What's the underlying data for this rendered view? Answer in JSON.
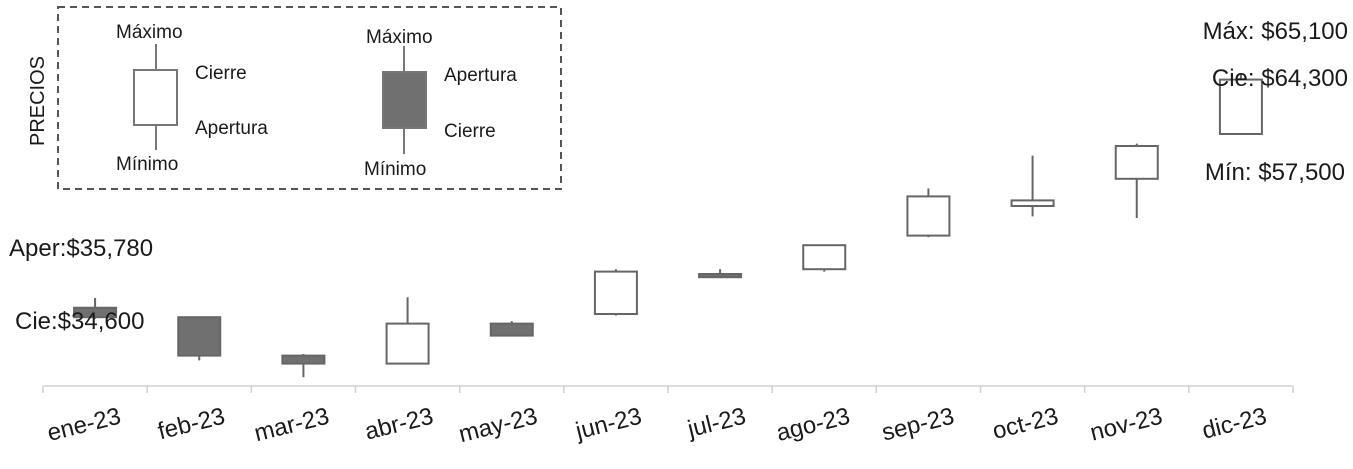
{
  "chart_data": {
    "type": "candlestick",
    "title": "",
    "xlabel": "",
    "ylabel": "",
    "y_axis_visible": false,
    "grid": false,
    "ylim": [
      26000,
      72000
    ],
    "colors": {
      "up_fill": "#ffffff",
      "down_fill": "#707070",
      "stroke": "#666666",
      "axis": "#d0d0d0"
    },
    "categories": [
      "ene-23",
      "feb-23",
      "mar-23",
      "abr-23",
      "may-23",
      "jun-23",
      "jul-23",
      "ago-23",
      "sep-23",
      "oct-23",
      "nov-23",
      "dic-23"
    ],
    "series": [
      {
        "open": [
          35780,
          34600,
          29800,
          28800,
          33800,
          35000,
          40000,
          40600,
          44800,
          48500,
          51900,
          57500
        ],
        "high": [
          37000,
          34700,
          30000,
          37100,
          34100,
          40600,
          40600,
          43600,
          50700,
          54800,
          56300,
          65100
        ],
        "low": [
          34400,
          29200,
          27100,
          28800,
          32300,
          34800,
          39600,
          40300,
          44600,
          47200,
          47000,
          57500
        ],
        "close": [
          34600,
          29800,
          28800,
          33800,
          32300,
          40300,
          39600,
          43600,
          49700,
          49200,
          56000,
          64300
        ]
      }
    ],
    "annotations": {
      "first_open": {
        "category": "ene-23",
        "text": "Aper:$35,780"
      },
      "first_close": {
        "category": "ene-23",
        "text": "Cie:$34,600"
      },
      "last_high": {
        "category": "dic-23",
        "text": "Máx: $65,100"
      },
      "last_close": {
        "category": "dic-23",
        "text": "Cie: $64,300"
      },
      "last_low": {
        "category": "dic-23",
        "text": "Mín: $57,500"
      }
    },
    "legend": {
      "placement": "top-left",
      "title": "PRECIOS",
      "up": {
        "high": "Máximo",
        "close": "Cierre",
        "open": "Apertura",
        "low": "Mínimo"
      },
      "down": {
        "high": "Máximo",
        "open": "Apertura",
        "close": "Cierre",
        "low": "Mínimo"
      }
    }
  }
}
